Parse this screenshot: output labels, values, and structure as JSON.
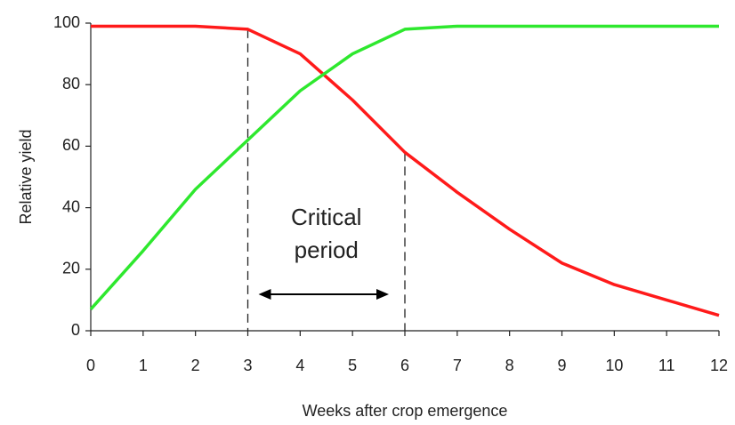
{
  "chart_data": {
    "type": "line",
    "x_label": "Weeks after crop emergence",
    "y_label": "Relative yield",
    "x": [
      0,
      1,
      2,
      3,
      4,
      5,
      6,
      7,
      8,
      9,
      10,
      11,
      12
    ],
    "series": [
      {
        "color": "#ff1a1a",
        "values": [
          99,
          99,
          99,
          98,
          90,
          75,
          58,
          45,
          33,
          22,
          15,
          10,
          5
        ]
      },
      {
        "color": "#2ee82e",
        "values": [
          7,
          26,
          46,
          62,
          78,
          90,
          98,
          99,
          99,
          99,
          99,
          99,
          99
        ]
      }
    ],
    "xlim": [
      0,
      12
    ],
    "ylim": [
      0,
      100
    ],
    "xticks": [
      0,
      1,
      2,
      3,
      4,
      5,
      6,
      7,
      8,
      9,
      10,
      11,
      12
    ],
    "yticks": [
      0,
      20,
      40,
      60,
      80,
      100
    ],
    "grid": false,
    "reference_lines": [
      3,
      6
    ],
    "annotation": [
      "Critical",
      "period"
    ]
  }
}
